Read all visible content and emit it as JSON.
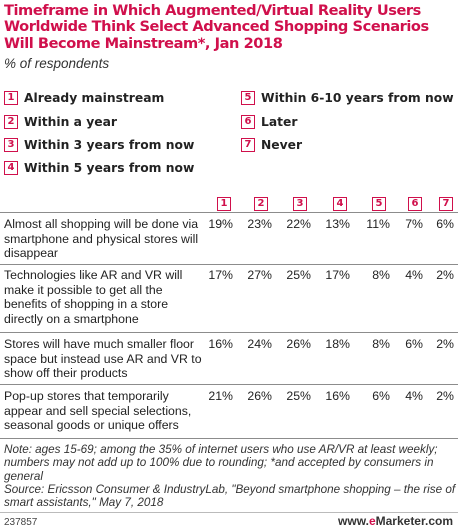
{
  "header": {
    "title": "Timeframe in Which Augmented/Virtual Reality Users Worldwide Think Select Advanced Shopping Scenarios Will Become Mainstream*, Jan 2018",
    "subtitle": "% of respondents"
  },
  "legend": [
    {
      "num": "1",
      "label": "Already mainstream"
    },
    {
      "num": "2",
      "label": "Within a year"
    },
    {
      "num": "3",
      "label": "Within 3 years from now"
    },
    {
      "num": "4",
      "label": "Within 5 years from now"
    },
    {
      "num": "5",
      "label": "Within 6-10 years from now"
    },
    {
      "num": "6",
      "label": "Later"
    },
    {
      "num": "7",
      "label": "Never"
    }
  ],
  "chart_data": {
    "type": "table",
    "columns": [
      "1",
      "2",
      "3",
      "4",
      "5",
      "6",
      "7"
    ],
    "rows": [
      {
        "label": "Almost all shopping will be done via smartphone and physical stores will disappear",
        "values": [
          "19%",
          "23%",
          "22%",
          "13%",
          "11%",
          "7%",
          "6%"
        ]
      },
      {
        "label": "Technologies like AR and VR will make it possible to get all the benefits of shopping in a store directly on a smartphone",
        "values": [
          "17%",
          "27%",
          "25%",
          "17%",
          "8%",
          "4%",
          "2%"
        ]
      },
      {
        "label": "Stores will have much smaller floor space but instead use AR and VR to show off their products",
        "values": [
          "16%",
          "24%",
          "26%",
          "18%",
          "8%",
          "6%",
          "2%"
        ]
      },
      {
        "label": "Pop-up stores that temporarily appear and sell special selections, seasonal goods or unique offers",
        "values": [
          "21%",
          "26%",
          "25%",
          "16%",
          "6%",
          "4%",
          "2%"
        ]
      }
    ]
  },
  "note": "Note: ages 15-69; among the 35% of internet users who use AR/VR at least weekly; numbers may not add up to 100% due to rounding; *and accepted by consumers in general",
  "source": "Source: Ericsson Consumer & IndustryLab, \"Beyond smartphone shopping – the rise of smart assistants,\" May 7, 2018",
  "footer": {
    "id": "237857",
    "brand_prefix": "www.",
    "brand_e": "e",
    "brand_suffix": "Marketer.com"
  },
  "colors": {
    "accent": "#d0104c"
  }
}
